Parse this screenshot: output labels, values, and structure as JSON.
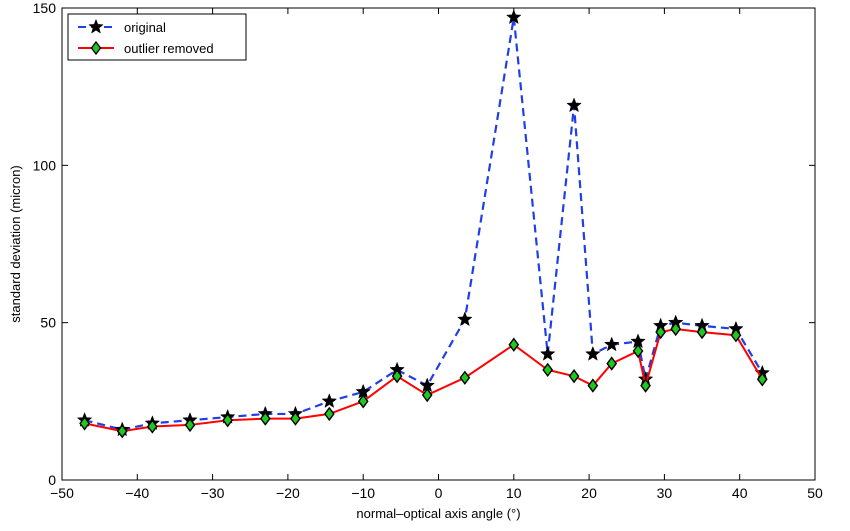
{
  "chart_data": {
    "type": "line",
    "xlabel": "normal–optical axis angle (°)",
    "ylabel": "standard deviation (micron)",
    "xlim": [
      -50,
      50
    ],
    "ylim": [
      0,
      150
    ],
    "xticks": [
      -50,
      -40,
      -30,
      -20,
      -10,
      0,
      10,
      20,
      30,
      40,
      50
    ],
    "yticks": [
      0,
      50,
      100,
      150
    ],
    "legend_position": "top-left",
    "grid": false,
    "series": [
      {
        "name": "original",
        "color": "#1f3fe8",
        "line_style": "dashed",
        "marker": "star",
        "x": [
          -47,
          -42,
          -38,
          -33,
          -28,
          -23,
          -19,
          -14.5,
          -10,
          -5.5,
          -1.5,
          3.5,
          10,
          14.5,
          18,
          20.5,
          23,
          26.5,
          27.5,
          29.5,
          31.5,
          35,
          39.5,
          43
        ],
        "y": [
          19,
          16,
          18,
          19,
          20,
          21,
          21,
          25,
          28,
          35,
          30,
          51,
          147,
          40,
          119,
          40,
          43,
          44,
          32,
          49,
          50,
          49,
          48,
          34
        ]
      },
      {
        "name": "outlier removed",
        "color": "#ff0000",
        "line_style": "solid",
        "marker": "diamond",
        "x": [
          -47,
          -42,
          -38,
          -33,
          -28,
          -23,
          -19,
          -14.5,
          -10,
          -5.5,
          -1.5,
          3.5,
          10,
          14.5,
          18,
          20.5,
          23,
          26.5,
          27.5,
          29.5,
          31.5,
          35,
          39.5,
          43
        ],
        "y": [
          18,
          15.5,
          17,
          17.5,
          19,
          19.5,
          19.5,
          21,
          25,
          33,
          27,
          32.5,
          43,
          35,
          33,
          30,
          37,
          41,
          30,
          47,
          48,
          47,
          46,
          32
        ]
      }
    ]
  }
}
